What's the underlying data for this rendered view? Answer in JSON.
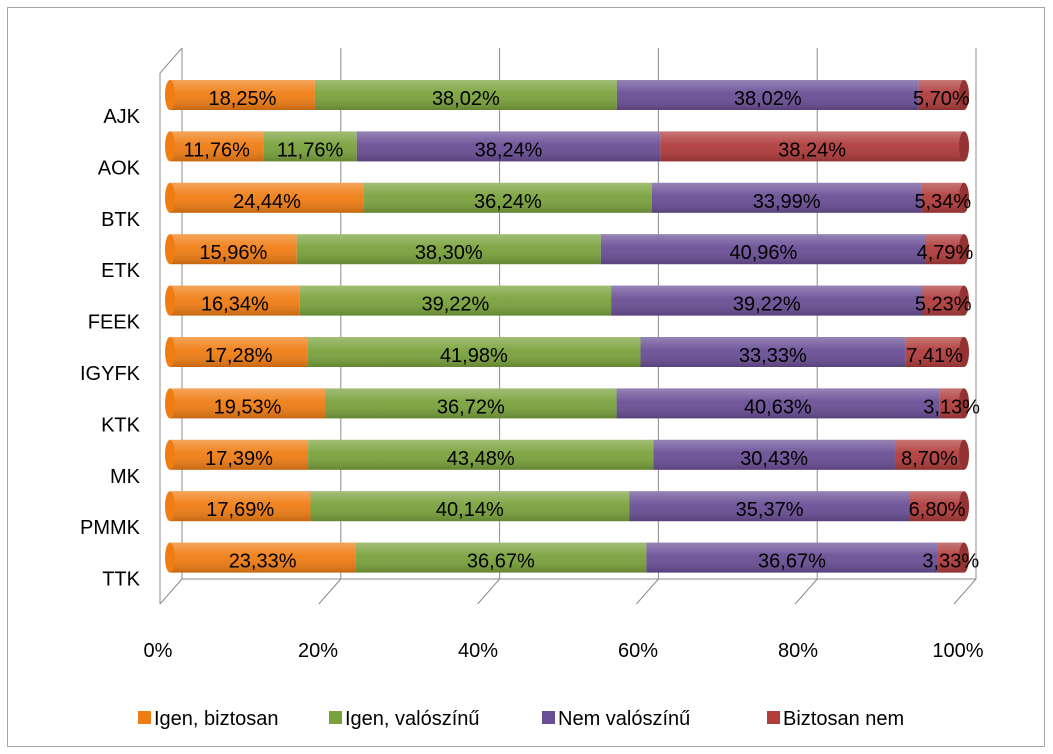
{
  "chart_data": {
    "type": "bar",
    "orientation": "horizontal",
    "stacked": "percent",
    "categories": [
      "AJK",
      "AOK",
      "BTK",
      "ETK",
      "FEEK",
      "IGYFK",
      "KTK",
      "MK",
      "PMMK",
      "TTK"
    ],
    "series": [
      {
        "name": "Igen, biztosan",
        "color": "#f07d14",
        "values": [
          18.25,
          11.76,
          24.44,
          15.96,
          16.34,
          17.28,
          19.53,
          17.39,
          17.69,
          23.33
        ],
        "labels": [
          "18,25%",
          "11,76%",
          "24,44%",
          "15,96%",
          "16,34%",
          "17,28%",
          "19,53%",
          "17,39%",
          "17,69%",
          "23,33%"
        ]
      },
      {
        "name": "Igen, valószínű",
        "color": "#7aa23c",
        "values": [
          38.02,
          11.76,
          36.24,
          38.3,
          39.22,
          41.98,
          36.72,
          43.48,
          40.14,
          36.67
        ],
        "labels": [
          "38,02%",
          "11,76%",
          "36,24%",
          "38,30%",
          "39,22%",
          "41,98%",
          "36,72%",
          "43,48%",
          "40,14%",
          "36,67%"
        ]
      },
      {
        "name": "Nem valószínű",
        "color": "#6a4f96",
        "values": [
          38.02,
          38.24,
          33.99,
          40.96,
          39.22,
          33.33,
          40.63,
          30.43,
          35.37,
          36.67
        ],
        "labels": [
          "38,02%",
          "38,24%",
          "33,99%",
          "40,96%",
          "39,22%",
          "33,33%",
          "40,63%",
          "30,43%",
          "35,37%",
          "36,67%"
        ]
      },
      {
        "name": "Biztosan nem",
        "color": "#b03c3c",
        "values": [
          5.7,
          38.24,
          5.34,
          4.79,
          5.23,
          7.41,
          3.13,
          8.7,
          6.8,
          3.33
        ],
        "labels": [
          "5,70%",
          "38,24%",
          "5,34%",
          "4,79%",
          "5,23%",
          "7,41%",
          "3,13%",
          "8,70%",
          "6,80%",
          "3,33%"
        ]
      }
    ],
    "x_ticks": [
      "0%",
      "20%",
      "40%",
      "60%",
      "80%",
      "100%"
    ],
    "xlim": [
      0,
      100
    ],
    "grid": true,
    "legend_position": "bottom"
  }
}
